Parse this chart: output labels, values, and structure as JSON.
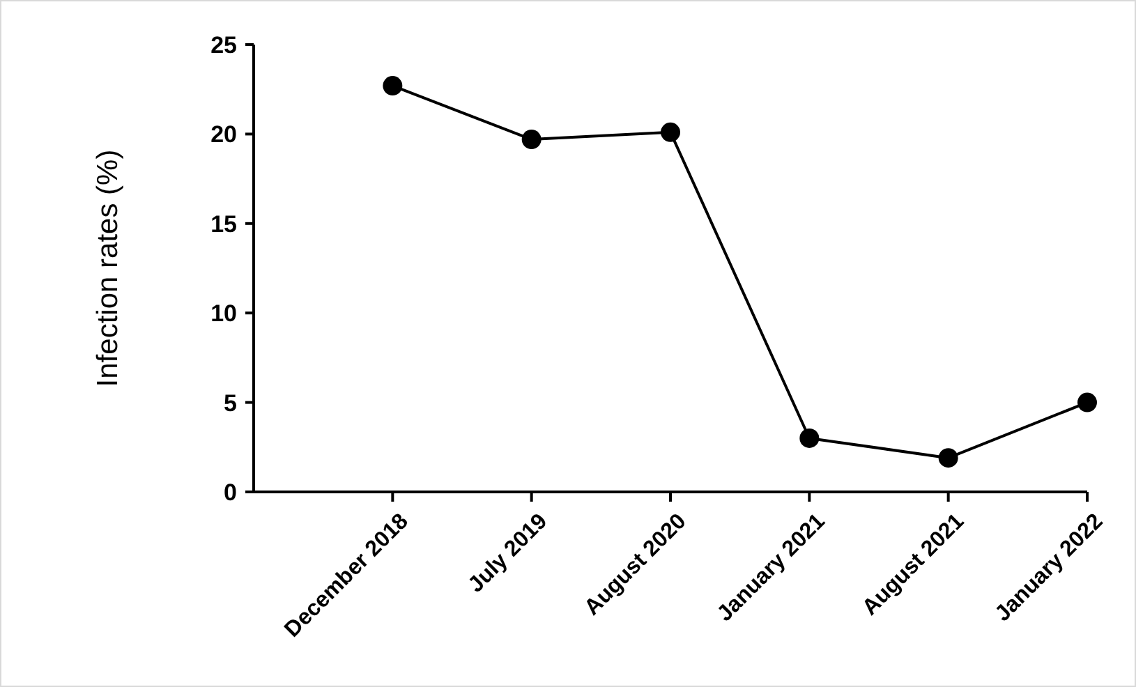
{
  "chart_data": {
    "type": "line",
    "ylabel": "Infection rates (%)",
    "categories": [
      "December 2018",
      "July 2019",
      "August 2020",
      "January 2021",
      "August 2021",
      "January 2022"
    ],
    "series": [
      {
        "color": "#000000",
        "values": [
          22.7,
          19.7,
          20.1,
          3.0,
          1.9,
          5.0
        ]
      }
    ],
    "ylim": [
      0,
      25
    ],
    "yticks": [
      0,
      5,
      10,
      15,
      20,
      25
    ],
    "marker": "circle",
    "line_style": "solid"
  }
}
